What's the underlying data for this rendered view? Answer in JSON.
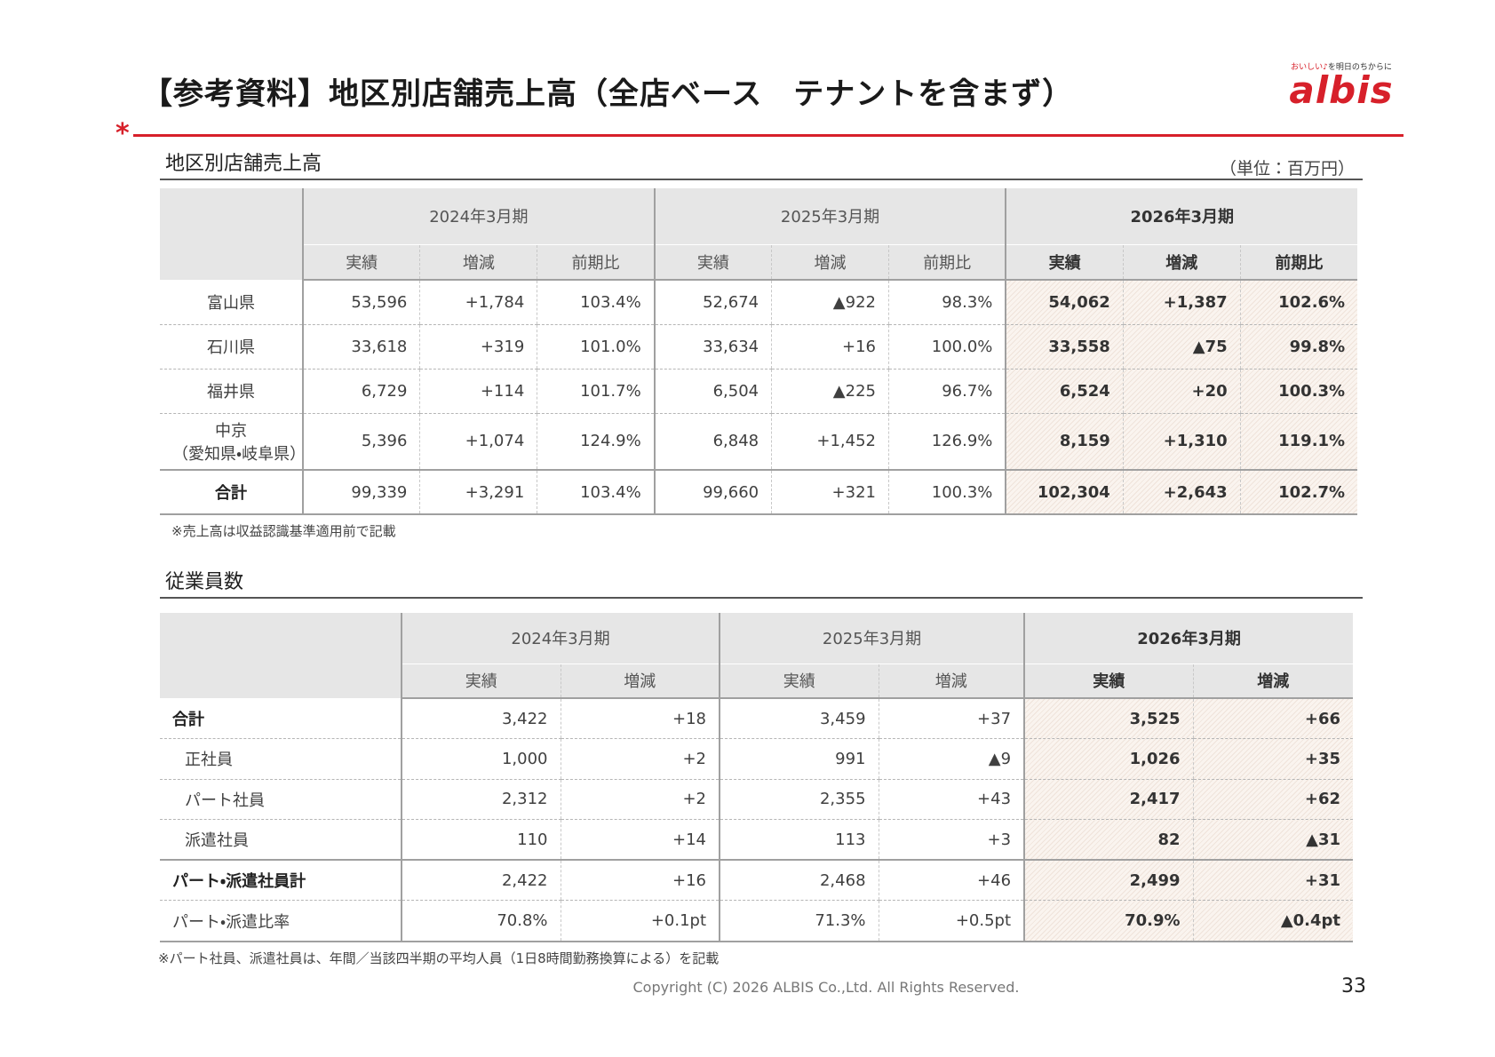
{
  "header": {
    "title": "【参考資料】地区別店舗売上高（全店ベース　テナントを含まず）",
    "logo_tagline_a": "おいしい",
    "logo_tagline_b": "を明日のちからに",
    "logo": "albis"
  },
  "sales": {
    "heading": "地区別店舗売上高",
    "unit": "（単位：百万円）",
    "periods": [
      "2024年3月期",
      "2025年3月期",
      "2026年3月期"
    ],
    "subheaders": [
      "実績",
      "増減",
      "前期比"
    ],
    "rows": [
      {
        "label": [
          "富山県"
        ],
        "cells": [
          "53,596",
          "+1,784",
          "103.4%",
          "52,674",
          "▲922",
          "98.3%",
          "54,062",
          "+1,387",
          "102.6%"
        ]
      },
      {
        "label": [
          "石川県"
        ],
        "cells": [
          "33,618",
          "+319",
          "101.0%",
          "33,634",
          "+16",
          "100.0%",
          "33,558",
          "▲75",
          "99.8%"
        ]
      },
      {
        "label": [
          "福井県"
        ],
        "cells": [
          "6,729",
          "+114",
          "101.7%",
          "6,504",
          "▲225",
          "96.7%",
          "6,524",
          "+20",
          "100.3%"
        ]
      },
      {
        "label": [
          "中京",
          "（愛知県・岐阜県）"
        ],
        "cells": [
          "5,396",
          "+1,074",
          "124.9%",
          "6,848",
          "+1,452",
          "126.9%",
          "8,159",
          "+1,310",
          "119.1%"
        ]
      },
      {
        "label": [
          "合計"
        ],
        "cells": [
          "99,339",
          "+3,291",
          "103.4%",
          "99,660",
          "+321",
          "100.3%",
          "102,304",
          "+2,643",
          "102.7%"
        ]
      }
    ],
    "note": "※売上高は収益認識基準適用前で記載"
  },
  "employees": {
    "heading": "従業員数",
    "periods": [
      "2024年3月期",
      "2025年3月期",
      "2026年3月期"
    ],
    "subheaders": [
      "実績",
      "増減"
    ],
    "rows": [
      {
        "label": [
          "合計"
        ],
        "cells": [
          "3,422",
          "+18",
          "3,459",
          "+37",
          "3,525",
          "+66"
        ]
      },
      {
        "label": [
          "正社員"
        ],
        "cells": [
          "1,000",
          "+2",
          "991",
          "▲9",
          "1,026",
          "+35"
        ]
      },
      {
        "label": [
          "パート社員"
        ],
        "cells": [
          "2,312",
          "+2",
          "2,355",
          "+43",
          "2,417",
          "+62"
        ]
      },
      {
        "label": [
          "派遣社員"
        ],
        "cells": [
          "110",
          "+14",
          "113",
          "+3",
          "82",
          "▲31"
        ]
      },
      {
        "label": [
          "パート・派遣社員計"
        ],
        "cells": [
          "2,422",
          "+16",
          "2,468",
          "+46",
          "2,499",
          "+31"
        ]
      },
      {
        "label": [
          "パート・派遣比率"
        ],
        "cells": [
          "70.8%",
          "+0.1pt",
          "71.3%",
          "+0.5pt",
          "70.9%",
          "▲0.4pt"
        ]
      }
    ],
    "note": "※パート社員、派遣社員は、年間／当該四半期の平均人員（1日8時間勤務換算による）を記載"
  },
  "footer": {
    "copyright": "Copyright (C) 2026 ALBIS Co.,Ltd. All Rights Reserved.",
    "page": "33"
  }
}
